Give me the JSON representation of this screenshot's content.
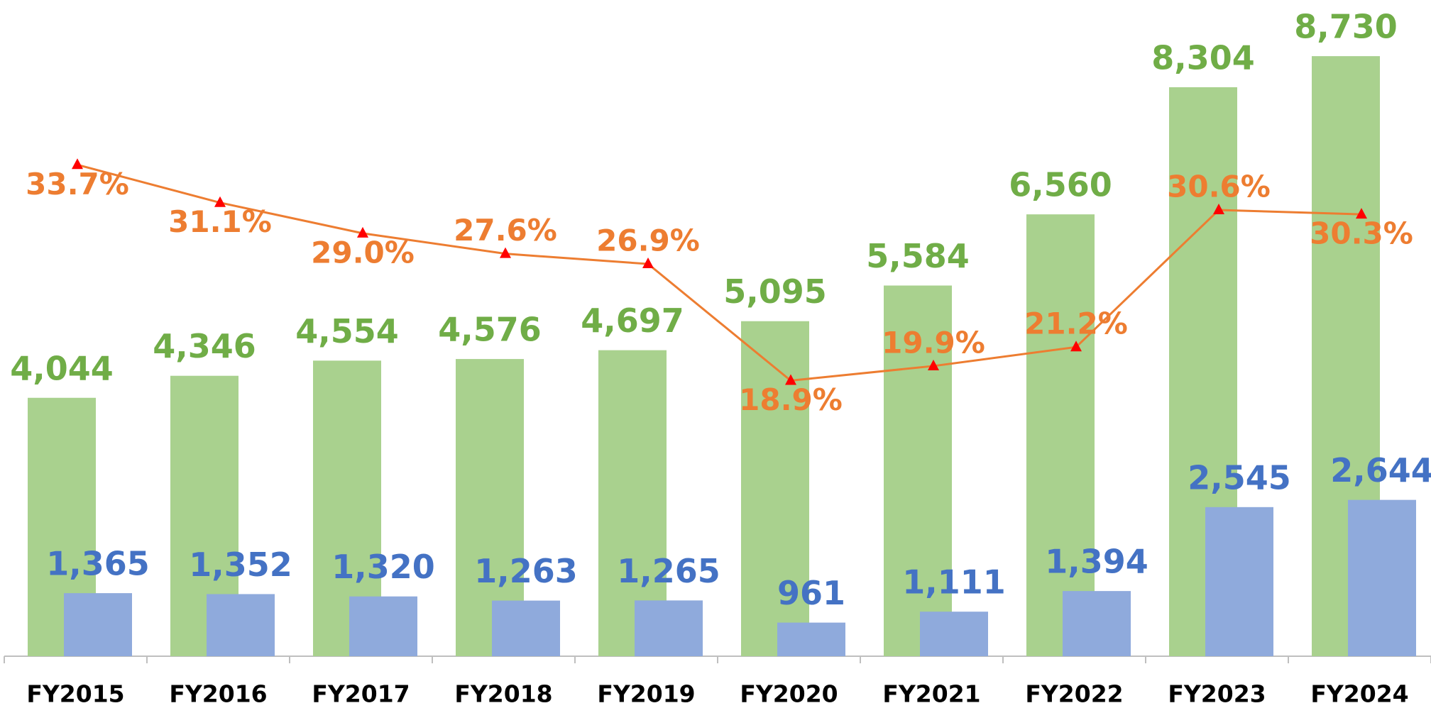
{
  "chart_data": {
    "type": "bar",
    "categories": [
      "FY2015",
      "FY2016",
      "FY2017",
      "FY2018",
      "FY2019",
      "FY2020",
      "FY2021",
      "FY2022",
      "FY2023",
      "FY2024"
    ],
    "series": [
      {
        "type": "bar",
        "color": "#a9d18e",
        "label_color": "#70ad47",
        "values": [
          4044,
          4346,
          4554,
          4576,
          4697,
          5095,
          5584,
          6560,
          8304,
          8730
        ],
        "value_labels": [
          "4,044",
          "4,346",
          "4,554",
          "4,576",
          "4,697",
          "5,095",
          "5,584",
          "6,560",
          "8,304",
          "8,730"
        ]
      },
      {
        "type": "bar",
        "color": "#8faadc",
        "label_color": "#4472c4",
        "values": [
          1365,
          1352,
          1320,
          1263,
          1265,
          961,
          1111,
          1394,
          2545,
          2644
        ],
        "value_labels": [
          "1,365",
          "1,352",
          "1,320",
          "1,263",
          "1,265",
          "961",
          "1,111",
          "1,394",
          "2,545",
          "2,644"
        ]
      },
      {
        "type": "line",
        "axis": "y2",
        "color": "#ed7d31",
        "marker_color": "#ff0000",
        "values": [
          33.7,
          31.1,
          29.0,
          27.6,
          26.9,
          18.9,
          19.9,
          21.2,
          30.6,
          30.3
        ],
        "value_labels": [
          "33.7%",
          "31.1%",
          "29.0%",
          "27.6%",
          "26.9%",
          "18.9%",
          "19.9%",
          "21.2%",
          "30.6%",
          "30.3%"
        ]
      }
    ],
    "ylim": [
      500,
      9500
    ],
    "y2lim": [
      0,
      45
    ]
  }
}
